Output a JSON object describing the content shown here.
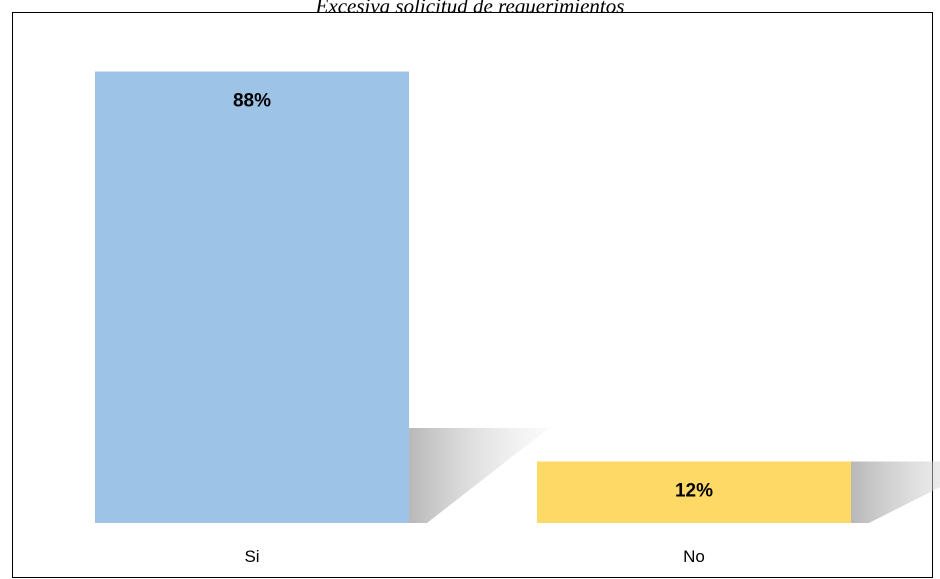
{
  "chart_data": {
    "type": "bar",
    "title": "Excesiva solicitud de requerimientos",
    "categories": [
      "Si",
      "No"
    ],
    "values": [
      88,
      12
    ],
    "data_labels": [
      "88%",
      "12%"
    ],
    "colors": [
      "#9DC3E6",
      "#FFD966"
    ],
    "ylim": [
      0,
      100
    ],
    "grid": false,
    "legend": "none"
  }
}
